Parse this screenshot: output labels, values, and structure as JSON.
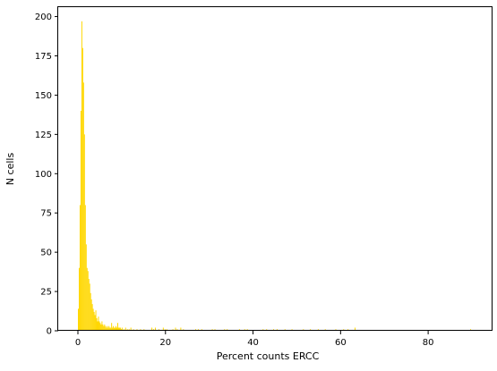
{
  "chart_data": {
    "type": "bar",
    "subtype": "histogram",
    "title": "",
    "xlabel": "Percent counts ERCC",
    "ylabel": "N cells",
    "xlim": [
      -4.5,
      94.5
    ],
    "ylim": [
      0,
      206
    ],
    "xticks": [
      0,
      20,
      40,
      60,
      80
    ],
    "yticks": [
      0,
      25,
      50,
      75,
      100,
      125,
      150,
      175,
      200
    ],
    "grid": false,
    "legend": "none",
    "bar_color": "#ffd700",
    "bin_width": 0.2,
    "bins": [
      {
        "x": 0.0,
        "y": 14
      },
      {
        "x": 0.2,
        "y": 40
      },
      {
        "x": 0.4,
        "y": 80
      },
      {
        "x": 0.6,
        "y": 140
      },
      {
        "x": 0.8,
        "y": 197
      },
      {
        "x": 1.0,
        "y": 180
      },
      {
        "x": 1.2,
        "y": 158
      },
      {
        "x": 1.4,
        "y": 125
      },
      {
        "x": 1.6,
        "y": 80
      },
      {
        "x": 1.8,
        "y": 55
      },
      {
        "x": 2.0,
        "y": 40
      },
      {
        "x": 2.2,
        "y": 38
      },
      {
        "x": 2.4,
        "y": 33
      },
      {
        "x": 2.6,
        "y": 30
      },
      {
        "x": 2.8,
        "y": 24
      },
      {
        "x": 3.0,
        "y": 20
      },
      {
        "x": 3.2,
        "y": 17
      },
      {
        "x": 3.4,
        "y": 14
      },
      {
        "x": 3.6,
        "y": 12
      },
      {
        "x": 3.8,
        "y": 10
      },
      {
        "x": 4.0,
        "y": 13
      },
      {
        "x": 4.2,
        "y": 8
      },
      {
        "x": 4.4,
        "y": 6
      },
      {
        "x": 4.6,
        "y": 9
      },
      {
        "x": 4.8,
        "y": 6
      },
      {
        "x": 5.0,
        "y": 5
      },
      {
        "x": 5.2,
        "y": 4
      },
      {
        "x": 5.4,
        "y": 6
      },
      {
        "x": 5.6,
        "y": 4
      },
      {
        "x": 5.8,
        "y": 3
      },
      {
        "x": 6.0,
        "y": 4
      },
      {
        "x": 6.2,
        "y": 3
      },
      {
        "x": 6.4,
        "y": 2
      },
      {
        "x": 6.6,
        "y": 3
      },
      {
        "x": 6.8,
        "y": 2
      },
      {
        "x": 7.0,
        "y": 3
      },
      {
        "x": 7.2,
        "y": 2
      },
      {
        "x": 7.4,
        "y": 2
      },
      {
        "x": 7.6,
        "y": 5
      },
      {
        "x": 7.8,
        "y": 2
      },
      {
        "x": 8.0,
        "y": 3
      },
      {
        "x": 8.2,
        "y": 2
      },
      {
        "x": 8.4,
        "y": 2
      },
      {
        "x": 8.6,
        "y": 3
      },
      {
        "x": 8.8,
        "y": 2
      },
      {
        "x": 9.0,
        "y": 5
      },
      {
        "x": 9.2,
        "y": 2
      },
      {
        "x": 9.4,
        "y": 2
      },
      {
        "x": 9.6,
        "y": 2
      },
      {
        "x": 9.8,
        "y": 1
      },
      {
        "x": 10.0,
        "y": 2
      },
      {
        "x": 10.4,
        "y": 1
      },
      {
        "x": 10.8,
        "y": 2
      },
      {
        "x": 11.2,
        "y": 1
      },
      {
        "x": 11.6,
        "y": 1
      },
      {
        "x": 12.0,
        "y": 2
      },
      {
        "x": 12.6,
        "y": 1
      },
      {
        "x": 13.4,
        "y": 1
      },
      {
        "x": 14.2,
        "y": 1
      },
      {
        "x": 15.0,
        "y": 1
      },
      {
        "x": 16.8,
        "y": 2
      },
      {
        "x": 17.2,
        "y": 1
      },
      {
        "x": 17.6,
        "y": 2
      },
      {
        "x": 18.4,
        "y": 1
      },
      {
        "x": 19.4,
        "y": 2
      },
      {
        "x": 19.8,
        "y": 1
      },
      {
        "x": 20.2,
        "y": 1
      },
      {
        "x": 21.6,
        "y": 1
      },
      {
        "x": 22.2,
        "y": 2
      },
      {
        "x": 22.6,
        "y": 1
      },
      {
        "x": 23.4,
        "y": 2
      },
      {
        "x": 24.0,
        "y": 1
      },
      {
        "x": 26.8,
        "y": 1
      },
      {
        "x": 27.4,
        "y": 1
      },
      {
        "x": 28.2,
        "y": 1
      },
      {
        "x": 30.6,
        "y": 1
      },
      {
        "x": 31.2,
        "y": 1
      },
      {
        "x": 33.4,
        "y": 1
      },
      {
        "x": 34.0,
        "y": 1
      },
      {
        "x": 36.8,
        "y": 1
      },
      {
        "x": 38.0,
        "y": 1
      },
      {
        "x": 38.6,
        "y": 1
      },
      {
        "x": 42.2,
        "y": 1
      },
      {
        "x": 43.0,
        "y": 1
      },
      {
        "x": 44.6,
        "y": 1
      },
      {
        "x": 45.4,
        "y": 1
      },
      {
        "x": 47.2,
        "y": 1
      },
      {
        "x": 48.8,
        "y": 1
      },
      {
        "x": 51.4,
        "y": 1
      },
      {
        "x": 53.0,
        "y": 1
      },
      {
        "x": 54.8,
        "y": 1
      },
      {
        "x": 56.4,
        "y": 1
      },
      {
        "x": 58.8,
        "y": 1
      },
      {
        "x": 60.6,
        "y": 1
      },
      {
        "x": 61.6,
        "y": 1
      },
      {
        "x": 63.2,
        "y": 2
      },
      {
        "x": 89.6,
        "y": 1
      }
    ]
  }
}
